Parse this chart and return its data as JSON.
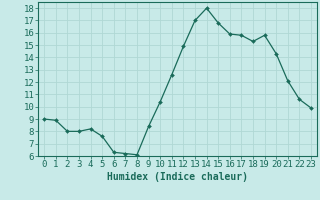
{
  "x": [
    0,
    1,
    2,
    3,
    4,
    5,
    6,
    7,
    8,
    9,
    10,
    11,
    12,
    13,
    14,
    15,
    16,
    17,
    18,
    19,
    20,
    21,
    22,
    23
  ],
  "y": [
    9.0,
    8.9,
    8.0,
    8.0,
    8.2,
    7.6,
    6.3,
    6.2,
    6.1,
    8.4,
    10.4,
    12.6,
    14.9,
    17.0,
    18.0,
    16.8,
    15.9,
    15.8,
    15.3,
    15.8,
    14.3,
    12.1,
    10.6,
    9.9
  ],
  "title": "",
  "xlabel": "Humidex (Indice chaleur)",
  "ylabel": "",
  "line_color": "#1a6b5a",
  "marker": "D",
  "marker_size": 2.0,
  "bg_color": "#c8eae8",
  "grid_color": "#b0d8d4",
  "ylim": [
    6,
    18.5
  ],
  "yticks": [
    6,
    7,
    8,
    9,
    10,
    11,
    12,
    13,
    14,
    15,
    16,
    17,
    18
  ],
  "xlim": [
    -0.5,
    23.5
  ],
  "xticks": [
    0,
    1,
    2,
    3,
    4,
    5,
    6,
    7,
    8,
    9,
    10,
    11,
    12,
    13,
    14,
    15,
    16,
    17,
    18,
    19,
    20,
    21,
    22,
    23
  ],
  "tick_color": "#1a6b5a",
  "label_color": "#1a6b5a",
  "xlabel_fontsize": 7,
  "tick_fontsize": 6.5
}
